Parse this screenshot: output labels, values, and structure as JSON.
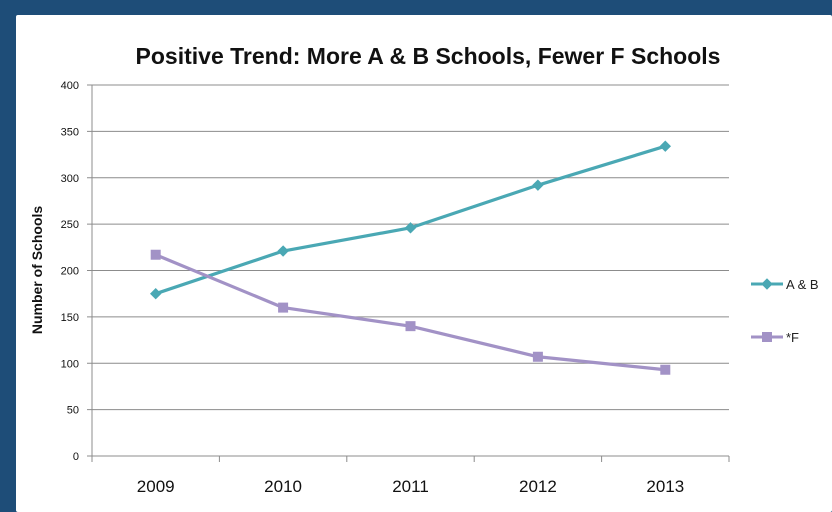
{
  "chart_data": {
    "type": "line",
    "title": "Positive Trend:  More A & B Schools, Fewer F Schools",
    "xlabel": "",
    "ylabel": "Number of Schools",
    "categories": [
      "2009",
      "2010",
      "2011",
      "2012",
      "2013"
    ],
    "ylim": [
      0,
      400
    ],
    "yticks": [
      "0",
      "50",
      "100",
      "150",
      "200",
      "250",
      "300",
      "350",
      "400"
    ],
    "grid": true,
    "legend_position": "right",
    "series": [
      {
        "name": "A & B",
        "values": [
          175,
          221,
          246,
          292,
          334
        ],
        "color": "#4aa8b4",
        "marker": "diamond"
      },
      {
        "name": "*F",
        "values": [
          217,
          160,
          140,
          107,
          93
        ],
        "color": "#a292c6",
        "marker": "square"
      }
    ]
  }
}
